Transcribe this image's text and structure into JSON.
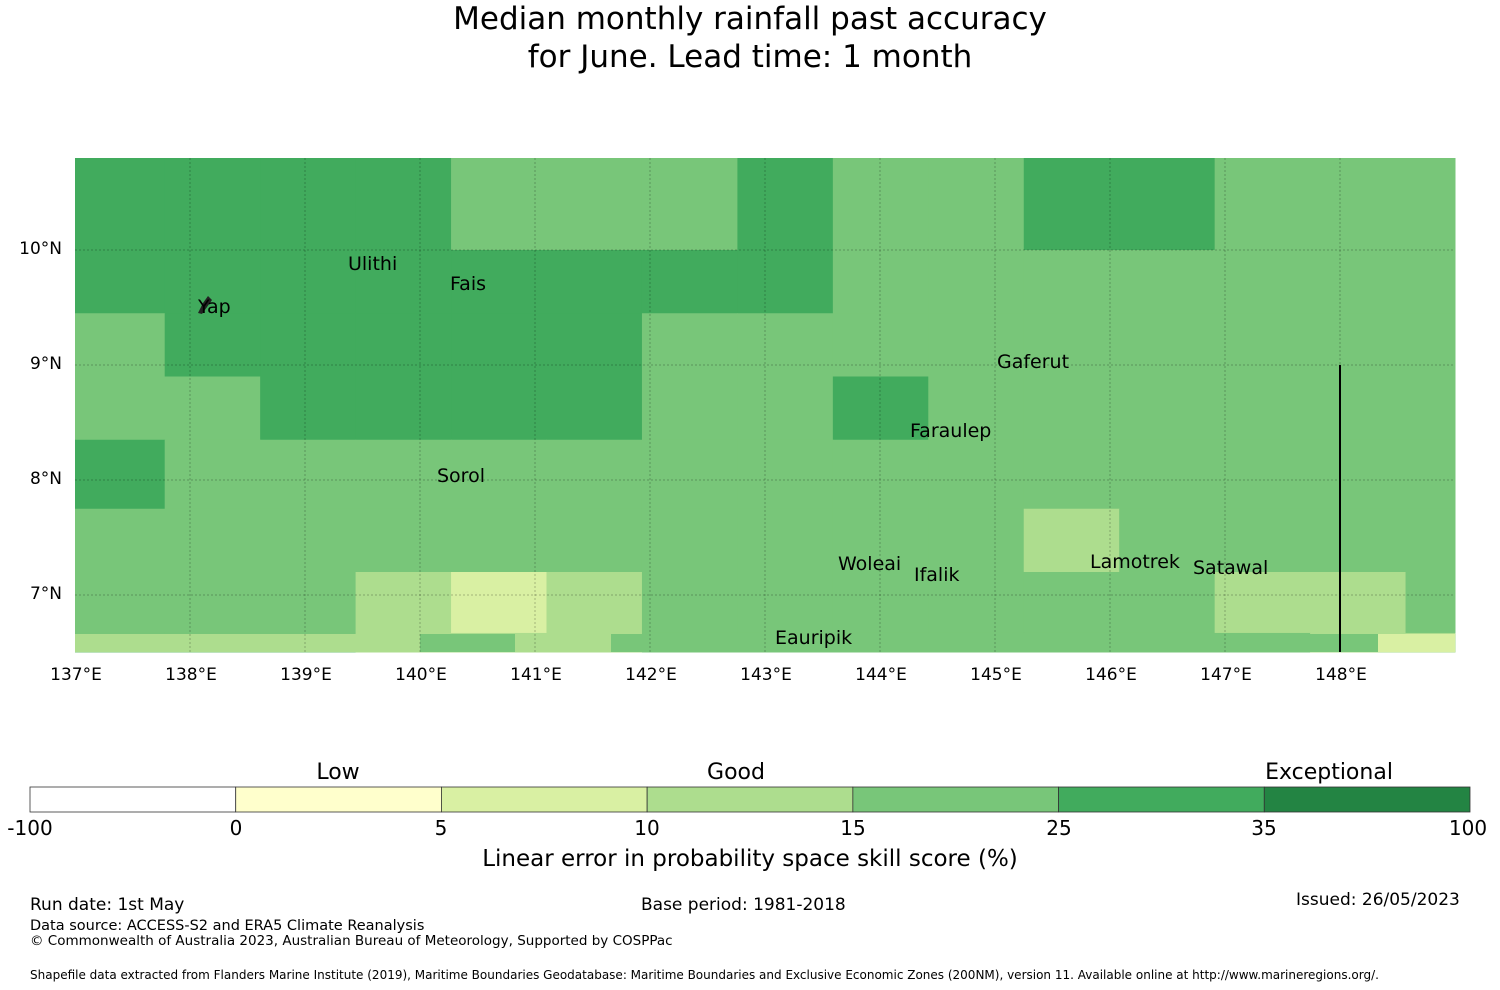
{
  "title": {
    "line1": "Median monthly rainfall past accuracy",
    "line2": "for June. Lead time: 1 month"
  },
  "map": {
    "lat_labels": [
      "10°N",
      "9°N",
      "8°N",
      "7°N"
    ],
    "lon_labels": [
      "137°E",
      "138°E",
      "139°E",
      "140°E",
      "141°E",
      "142°E",
      "143°E",
      "144°E",
      "145°E",
      "146°E",
      "147°E",
      "148°E"
    ],
    "places": [
      "Ulithi",
      "Yap",
      "Fais",
      "Gaferut",
      "Faraulep",
      "Sorol",
      "Woleai",
      "Ifalik",
      "Lamotrek",
      "Satawal",
      "Eauripik"
    ],
    "skill_grid": {
      "lat_rows": [
        "10.75",
        "10.2",
        "9.6",
        "9.05",
        "8.5",
        "7.95",
        "7.4",
        "6.85"
      ],
      "lon_start_deg": 136.95,
      "lon_step_deg": 0.83,
      "cells": [
        [
          3,
          3,
          3,
          3,
          2,
          2,
          2,
          3,
          2,
          2,
          3,
          3,
          2,
          2,
          2,
          2,
          2
        ],
        [
          3,
          3,
          3,
          3,
          3,
          3,
          3,
          3,
          2,
          2,
          2,
          2,
          2,
          2,
          2,
          2,
          2
        ],
        [
          2,
          3,
          3,
          3,
          3,
          3,
          2,
          2,
          2,
          2,
          2,
          2,
          2,
          2,
          2,
          2,
          2
        ],
        [
          2,
          2,
          3,
          3,
          3,
          3,
          2,
          2,
          3,
          2,
          2,
          2,
          2,
          2,
          2,
          2,
          2
        ],
        [
          3,
          2,
          2,
          2,
          2,
          2,
          2,
          2,
          2,
          2,
          2,
          2,
          2,
          2,
          2,
          2,
          2
        ],
        [
          2,
          2,
          2,
          2,
          2,
          2,
          2,
          2,
          2,
          2,
          1,
          2,
          2,
          2,
          2,
          2,
          2
        ],
        [
          2,
          2,
          2,
          1,
          0,
          1,
          2,
          2,
          2,
          2,
          2,
          2,
          1,
          1,
          2,
          1,
          1
        ],
        [
          2,
          2,
          2,
          1,
          1,
          1,
          2,
          2,
          2,
          2,
          2,
          2,
          2,
          1,
          1,
          1,
          0
        ]
      ]
    }
  },
  "colorbar": {
    "headings": [
      "Low",
      "Good",
      "Exceptional"
    ],
    "ticks": [
      "-100",
      "0",
      "5",
      "10",
      "15",
      "25",
      "35",
      "100"
    ],
    "colors": [
      "#ffffff",
      "#ffffcc",
      "#d9f0a3",
      "#addd8e",
      "#78c679",
      "#41ab5d",
      "#238443"
    ],
    "label": "Linear error in probability space skill score (%)"
  },
  "legend_class_colors": {
    "0": "#d9f0a3",
    "1": "#addd8e",
    "2": "#78c679",
    "3": "#41ab5d"
  },
  "footer": {
    "run_date": "Run date: 1st May",
    "base_period": "Base period: 1981-2018",
    "issued": "Issued: 26/05/2023",
    "data_source": "Data source: ACCESS-S2 and ERA5 Climate Reanalysis",
    "copyright": "© Commonwealth of Australia 2023, Australian Bureau of Meteorology, Supported by COSPPac",
    "shapefile": "Shapefile data extracted from Flanders Marine Institute (2019), Maritime Boundaries Geodatabase: Maritime Boundaries and Exclusive Economic Zones (200NM), version 11. Available online at http://www.marineregions.org/."
  }
}
